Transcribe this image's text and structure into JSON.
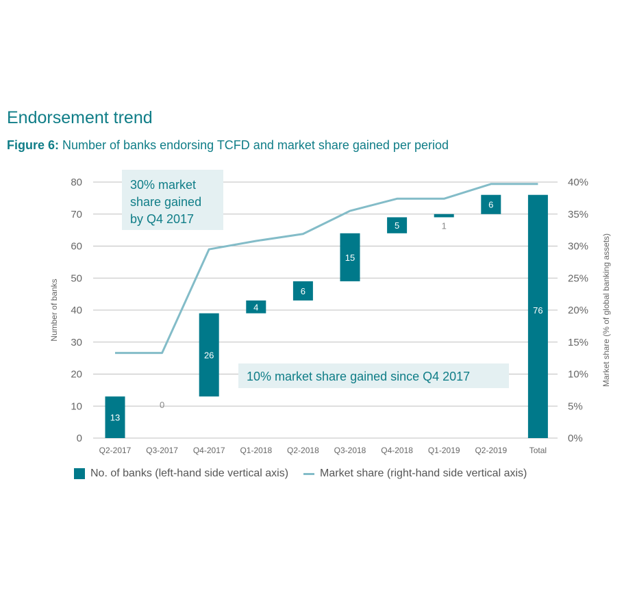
{
  "header": {
    "section_title": "Endorsement trend",
    "figure_label": "Figure 6:",
    "figure_title": " Number of banks endorsing TCFD and market share gained per period"
  },
  "colors": {
    "bar": "#00798a",
    "line": "#83bcc8",
    "text": "#0f7d87",
    "axis": "#666666",
    "callout_bg": "#e4f0f2"
  },
  "chart_data": {
    "type": "bar",
    "subtype": "waterfall",
    "categories": [
      "Q2-2017",
      "Q3-2017",
      "Q4-2017",
      "Q1-2018",
      "Q2-2018",
      "Q3-2018",
      "Q4-2018",
      "Q1-2019",
      "Q2-2019",
      "Total"
    ],
    "series": [
      {
        "name": "No. of banks (left-hand side vertical axis)",
        "axis": "left",
        "values": [
          13,
          0,
          26,
          4,
          6,
          15,
          5,
          1,
          6,
          76
        ],
        "bar_start": [
          0,
          13,
          13,
          39,
          43,
          49,
          64,
          69,
          70,
          0
        ],
        "bar_end": [
          13,
          13,
          39,
          43,
          49,
          64,
          69,
          70,
          76,
          76
        ]
      },
      {
        "name": "Market share (right-hand side vertical axis)",
        "axis": "right",
        "type": "line",
        "values": [
          13.3,
          13.3,
          29.5,
          30.8,
          31.9,
          35.5,
          37.4,
          37.4,
          39.7,
          39.7
        ]
      }
    ],
    "ylabel": "Number of banks",
    "y2label": "Market share (% of global banking assets)",
    "ylim": [
      0,
      80
    ],
    "y_ticks": [
      "0",
      "10",
      "20",
      "30",
      "40",
      "50",
      "60",
      "70",
      "80"
    ],
    "y2lim": [
      0,
      40
    ],
    "y2_ticks": [
      "0%",
      "5%",
      "10%",
      "15%",
      "20%",
      "25%",
      "30%",
      "35%",
      "40%"
    ],
    "grid": true,
    "legend": "bottom",
    "annotations": [
      {
        "lines": [
          "30% market",
          "share gained",
          "by Q4 2017"
        ]
      },
      {
        "lines": [
          "10% market share gained since Q4 2017"
        ]
      }
    ]
  }
}
